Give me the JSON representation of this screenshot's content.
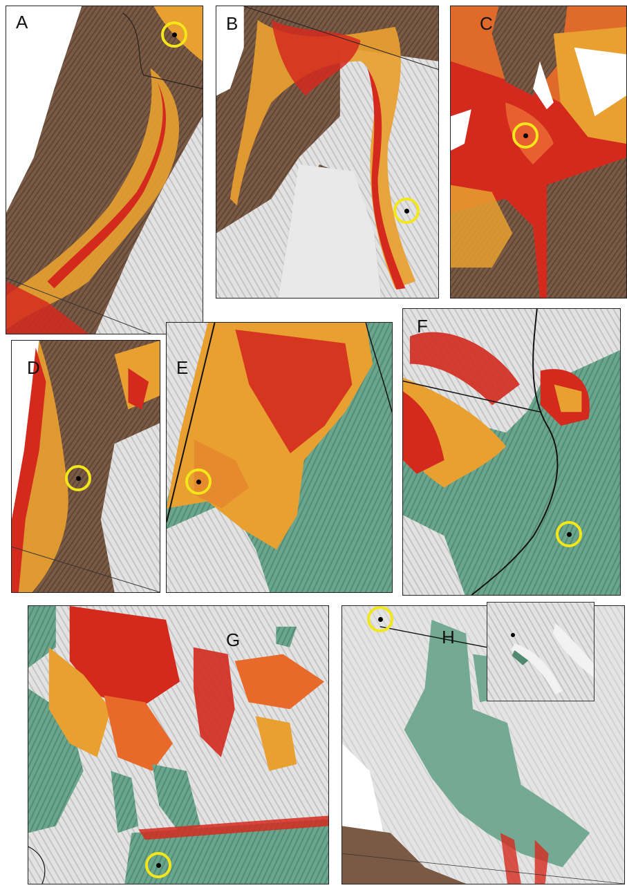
{
  "figure": {
    "colors": {
      "brown": "#7a5a45",
      "orange": "#e8a030",
      "red": "#d42a1e",
      "green": "#6aa58d",
      "hillshade": "#dcdcdc",
      "marker": "#f3e61a"
    },
    "panels": [
      {
        "label": "A"
      },
      {
        "label": "B"
      },
      {
        "label": "C"
      },
      {
        "label": "D"
      },
      {
        "label": "E"
      },
      {
        "label": "F"
      },
      {
        "label": "G"
      },
      {
        "label": "H"
      }
    ]
  }
}
